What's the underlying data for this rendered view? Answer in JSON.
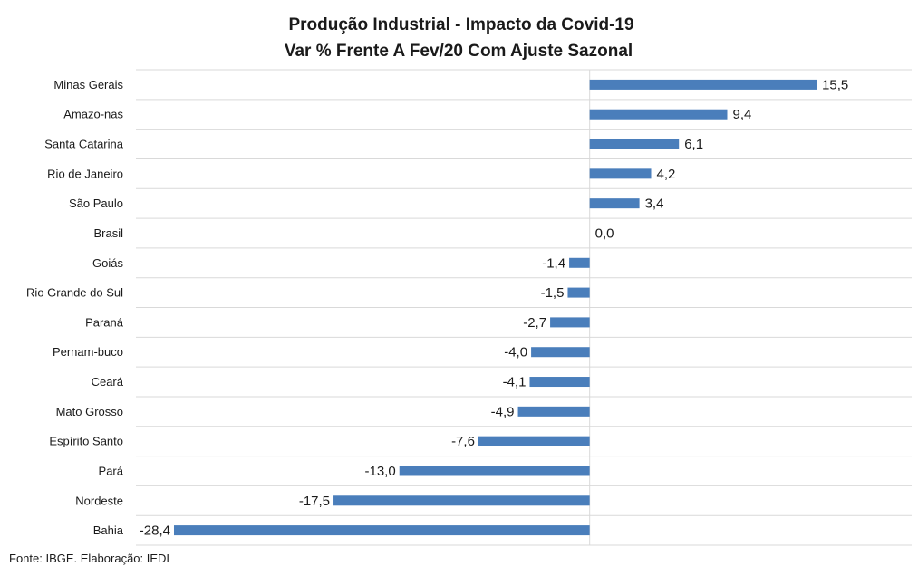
{
  "chart_data": {
    "type": "bar",
    "orientation": "horizontal",
    "title": "Produção Industrial - Impacto da Covid-19",
    "subtitle": "Var % Frente A Fev/20 Com Ajuste Sazonal",
    "categories": [
      "Minas Gerais",
      "Amazo-nas",
      "Santa Catarina",
      "Rio de Janeiro",
      "São Paulo",
      "Brasil",
      "Goiás",
      "Rio Grande do Sul",
      "Paraná",
      "Pernam-buco",
      "Ceará",
      "Mato Grosso",
      "Espírito Santo",
      "Pará",
      "Nordeste",
      "Bahia"
    ],
    "values": [
      15.5,
      9.4,
      6.1,
      4.2,
      3.4,
      0.0,
      -1.4,
      -1.5,
      -2.7,
      -4.0,
      -4.1,
      -4.9,
      -7.6,
      -13.0,
      -17.5,
      -28.4
    ],
    "value_labels": [
      "15,5",
      "9,4",
      "6,1",
      "4,2",
      "3,4",
      "0,0",
      "-1,4",
      "-1,5",
      "-2,7",
      "-4,0",
      "-4,1",
      "-4,9",
      "-7,6",
      "-13,0",
      "-17,5",
      "-28,4"
    ],
    "xlim": [
      -31,
      22
    ],
    "grid": true,
    "legend": "none",
    "bar_color": "#4a7ebb",
    "grid_color": "#d9d9d9"
  },
  "source_note": "Fonte: IBGE. Elaboração: IEDI"
}
